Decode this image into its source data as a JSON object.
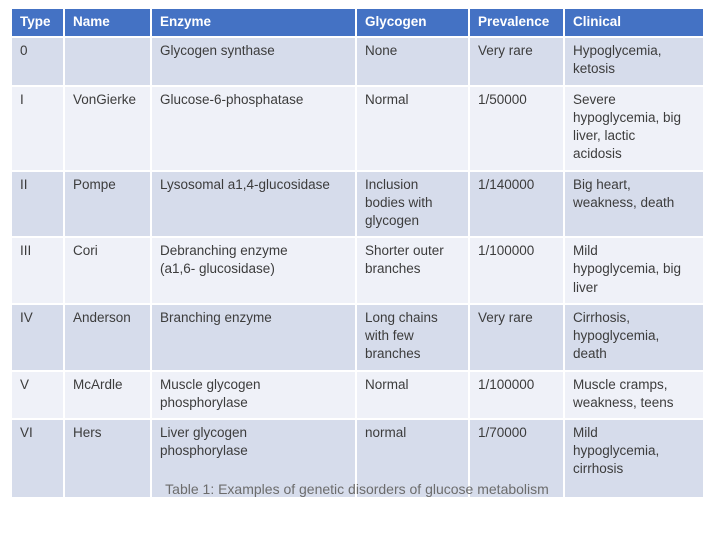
{
  "table": {
    "columns": [
      {
        "label": "Type"
      },
      {
        "label": "Name"
      },
      {
        "label": "Enzyme"
      },
      {
        "label": "Glycogen"
      },
      {
        "label": "Prevalence"
      },
      {
        "label": "Clinical"
      }
    ],
    "rows": [
      {
        "type": "0",
        "name": "",
        "enzyme": "Glycogen synthase",
        "glycogen": "None",
        "prevalence": "Very rare",
        "clinical": "Hypoglycemia,\nketosis"
      },
      {
        "type": "I",
        "name": "VonGierke",
        "enzyme": "Glucose-6-phosphatase",
        "glycogen": "Normal",
        "prevalence": "1/50000",
        "clinical": "Severe\nhypoglycemia, big\nliver, lactic\nacidosis"
      },
      {
        "type": "II",
        "name": "Pompe",
        "enzyme": "Lysosomal a1,4-glucosidase",
        "glycogen": "Inclusion\nbodies with\nglycogen",
        "prevalence": "1/140000",
        "clinical": "Big heart,\nweakness, death"
      },
      {
        "type": "III",
        "name": "Cori",
        "enzyme": "Debranching enzyme\n(a1,6- glucosidase)",
        "glycogen": "Shorter outer\nbranches",
        "prevalence": "1/100000",
        "clinical": "Mild\nhypoglycemia, big\nliver"
      },
      {
        "type": "IV",
        "name": "Anderson",
        "enzyme": "Branching enzyme",
        "glycogen": "Long chains\nwith few\nbranches",
        "prevalence": "Very rare",
        "clinical": "Cirrhosis,\nhypoglycemia,\ndeath"
      },
      {
        "type": "V",
        "name": "McArdle",
        "enzyme": "Muscle glycogen\nphosphorylase",
        "glycogen": "Normal",
        "prevalence": "1/100000",
        "clinical": "Muscle cramps,\nweakness, teens"
      },
      {
        "type": "VI",
        "name": "Hers",
        "enzyme": "Liver glycogen\nphosphorylase",
        "glycogen": "normal",
        "prevalence": "1/70000",
        "clinical": "Mild\nhypoglycemia,\ncirrhosis"
      }
    ],
    "caption": "Table 1: Examples of genetic disorders of glucose metabolism",
    "colors": {
      "header_bg": "#4472C4",
      "header_text": "#FFFFFF",
      "band_dark": "#D6DCEB",
      "band_light": "#EFF1F8",
      "body_text": "#3C3C3C",
      "caption_text": "#6C6C6C"
    }
  }
}
